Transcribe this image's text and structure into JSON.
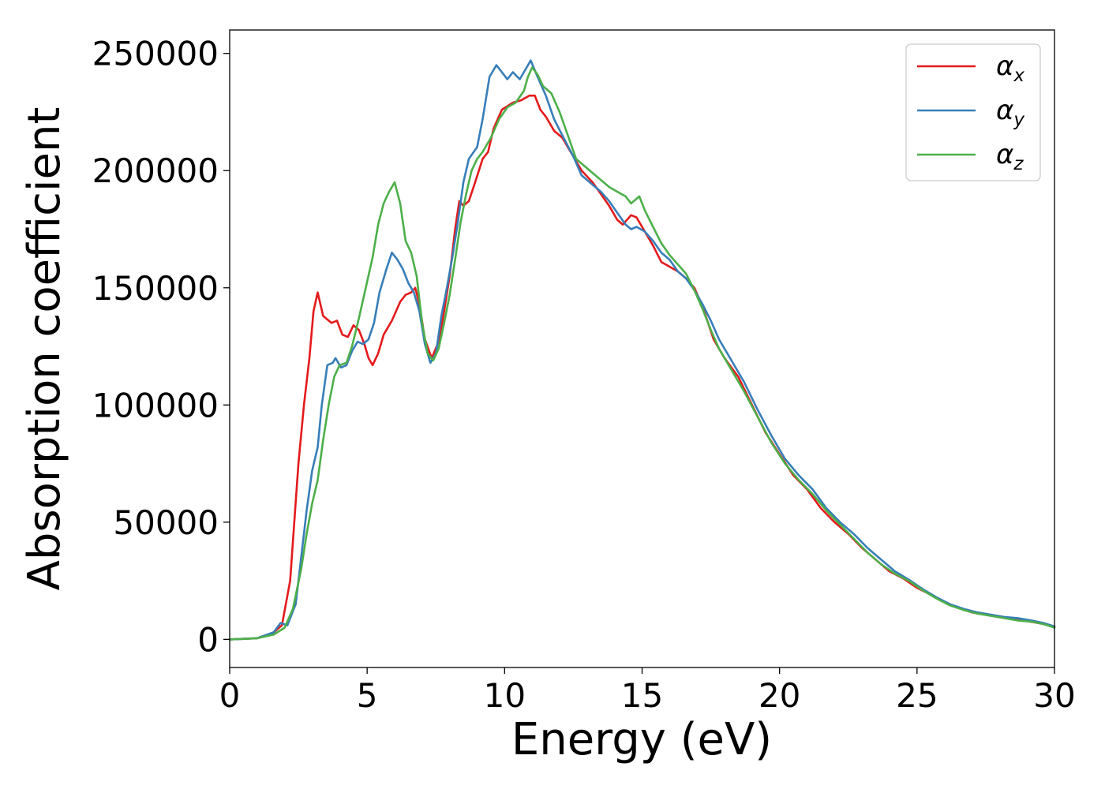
{
  "chart_data": {
    "type": "line",
    "xlabel": "Energy (eV)",
    "ylabel": "Absorption coefficient",
    "xlim": [
      0,
      30
    ],
    "ylim": [
      -12000,
      260000
    ],
    "xticks": [
      0,
      5,
      10,
      15,
      20,
      25,
      30
    ],
    "xtick_labels": [
      "0",
      "5",
      "10",
      "15",
      "20",
      "25",
      "30"
    ],
    "yticks": [
      0,
      50000,
      100000,
      150000,
      200000,
      250000
    ],
    "ytick_labels": [
      "0",
      "50000",
      "100000",
      "150000",
      "200000",
      "250000"
    ],
    "grid": false,
    "legend_position": "top-right",
    "series": [
      {
        "name": "α_x",
        "legend_base": "α",
        "legend_sub": "x",
        "color": "#e41a1c",
        "points": [
          [
            0,
            0
          ],
          [
            1,
            500
          ],
          [
            1.5,
            2000
          ],
          [
            1.9,
            6000
          ],
          [
            2.2,
            25000
          ],
          [
            2.5,
            75000
          ],
          [
            2.7,
            100000
          ],
          [
            2.9,
            120000
          ],
          [
            3.05,
            140000
          ],
          [
            3.2,
            148000
          ],
          [
            3.4,
            138000
          ],
          [
            3.7,
            135000
          ],
          [
            3.9,
            136000
          ],
          [
            4.1,
            130000
          ],
          [
            4.3,
            129000
          ],
          [
            4.5,
            134000
          ],
          [
            4.7,
            132000
          ],
          [
            4.9,
            126000
          ],
          [
            5.05,
            120000
          ],
          [
            5.2,
            117000
          ],
          [
            5.4,
            122000
          ],
          [
            5.6,
            130000
          ],
          [
            5.9,
            136000
          ],
          [
            6.2,
            144000
          ],
          [
            6.4,
            147000
          ],
          [
            6.6,
            148000
          ],
          [
            6.75,
            150000
          ],
          [
            6.9,
            143000
          ],
          [
            7.1,
            128000
          ],
          [
            7.35,
            120000
          ],
          [
            7.6,
            127000
          ],
          [
            7.8,
            140000
          ],
          [
            8.0,
            155000
          ],
          [
            8.2,
            175000
          ],
          [
            8.35,
            187000
          ],
          [
            8.5,
            185000
          ],
          [
            8.7,
            187000
          ],
          [
            8.9,
            194000
          ],
          [
            9.2,
            205000
          ],
          [
            9.4,
            208000
          ],
          [
            9.6,
            218000
          ],
          [
            9.9,
            226000
          ],
          [
            10.3,
            229000
          ],
          [
            10.6,
            230000
          ],
          [
            10.9,
            232000
          ],
          [
            11.1,
            232000
          ],
          [
            11.3,
            226000
          ],
          [
            11.5,
            223000
          ],
          [
            11.8,
            217000
          ],
          [
            12.1,
            214000
          ],
          [
            12.5,
            206000
          ],
          [
            12.8,
            200000
          ],
          [
            13.2,
            195000
          ],
          [
            13.5,
            190000
          ],
          [
            13.8,
            185000
          ],
          [
            14.1,
            179000
          ],
          [
            14.3,
            177000
          ],
          [
            14.6,
            181000
          ],
          [
            14.8,
            180000
          ],
          [
            15.1,
            174000
          ],
          [
            15.4,
            168000
          ],
          [
            15.7,
            161000
          ],
          [
            16.0,
            159000
          ],
          [
            16.3,
            157000
          ],
          [
            16.6,
            154000
          ],
          [
            16.9,
            150000
          ],
          [
            17.2,
            142000
          ],
          [
            17.6,
            128000
          ],
          [
            18.0,
            120000
          ],
          [
            18.5,
            112000
          ],
          [
            19.0,
            100000
          ],
          [
            19.5,
            88000
          ],
          [
            20.0,
            79000
          ],
          [
            20.5,
            70000
          ],
          [
            21.0,
            64000
          ],
          [
            21.5,
            56000
          ],
          [
            22.0,
            50000
          ],
          [
            22.5,
            45000
          ],
          [
            23.0,
            39000
          ],
          [
            23.5,
            34000
          ],
          [
            24.0,
            29000
          ],
          [
            24.5,
            26000
          ],
          [
            25.0,
            22000
          ],
          [
            25.5,
            19000
          ],
          [
            26.0,
            16000
          ],
          [
            26.5,
            13500
          ],
          [
            27.0,
            11500
          ],
          [
            27.5,
            10500
          ],
          [
            28.0,
            9500
          ],
          [
            28.5,
            8500
          ],
          [
            29.0,
            7800
          ],
          [
            29.5,
            6800
          ],
          [
            30.0,
            5500
          ]
        ]
      },
      {
        "name": "α_y",
        "legend_base": "α",
        "legend_sub": "y",
        "color": "#377eb8",
        "points": [
          [
            0,
            0
          ],
          [
            1,
            500
          ],
          [
            1.6,
            3000
          ],
          [
            1.85,
            7000
          ],
          [
            2.1,
            6000
          ],
          [
            2.4,
            15000
          ],
          [
            2.6,
            35000
          ],
          [
            2.8,
            55000
          ],
          [
            3.0,
            72000
          ],
          [
            3.2,
            82000
          ],
          [
            3.35,
            100000
          ],
          [
            3.55,
            117000
          ],
          [
            3.75,
            118000
          ],
          [
            3.85,
            120000
          ],
          [
            4.05,
            116000
          ],
          [
            4.25,
            117000
          ],
          [
            4.45,
            123000
          ],
          [
            4.65,
            127000
          ],
          [
            4.85,
            126000
          ],
          [
            5.05,
            128000
          ],
          [
            5.25,
            135000
          ],
          [
            5.45,
            148000
          ],
          [
            5.7,
            158000
          ],
          [
            5.9,
            165000
          ],
          [
            6.1,
            162000
          ],
          [
            6.3,
            158000
          ],
          [
            6.5,
            152000
          ],
          [
            6.7,
            148000
          ],
          [
            6.9,
            140000
          ],
          [
            7.1,
            126000
          ],
          [
            7.3,
            118000
          ],
          [
            7.5,
            122000
          ],
          [
            7.7,
            138000
          ],
          [
            7.9,
            150000
          ],
          [
            8.1,
            163000
          ],
          [
            8.3,
            178000
          ],
          [
            8.5,
            195000
          ],
          [
            8.7,
            205000
          ],
          [
            9.0,
            210000
          ],
          [
            9.2,
            222000
          ],
          [
            9.45,
            240000
          ],
          [
            9.7,
            245000
          ],
          [
            9.9,
            242000
          ],
          [
            10.1,
            239000
          ],
          [
            10.3,
            242000
          ],
          [
            10.55,
            239000
          ],
          [
            10.75,
            243000
          ],
          [
            10.95,
            247000
          ],
          [
            11.2,
            240000
          ],
          [
            11.5,
            232000
          ],
          [
            11.8,
            222000
          ],
          [
            12.1,
            215000
          ],
          [
            12.5,
            206000
          ],
          [
            12.8,
            198000
          ],
          [
            13.2,
            194000
          ],
          [
            13.5,
            191000
          ],
          [
            13.8,
            187000
          ],
          [
            14.1,
            182000
          ],
          [
            14.4,
            177000
          ],
          [
            14.6,
            175000
          ],
          [
            14.8,
            176000
          ],
          [
            15.1,
            174000
          ],
          [
            15.4,
            170000
          ],
          [
            15.7,
            165000
          ],
          [
            16.0,
            162000
          ],
          [
            16.3,
            157000
          ],
          [
            16.6,
            154000
          ],
          [
            16.9,
            149000
          ],
          [
            17.2,
            143000
          ],
          [
            17.5,
            136000
          ],
          [
            17.8,
            128000
          ],
          [
            18.2,
            120000
          ],
          [
            18.7,
            110000
          ],
          [
            19.2,
            98000
          ],
          [
            19.7,
            87000
          ],
          [
            20.2,
            77000
          ],
          [
            20.7,
            70000
          ],
          [
            21.2,
            64000
          ],
          [
            21.7,
            56000
          ],
          [
            22.2,
            50000
          ],
          [
            22.7,
            45000
          ],
          [
            23.2,
            39000
          ],
          [
            23.7,
            34000
          ],
          [
            24.2,
            29000
          ],
          [
            24.7,
            25500
          ],
          [
            25.2,
            21500
          ],
          [
            25.7,
            18000
          ],
          [
            26.2,
            15000
          ],
          [
            26.7,
            13000
          ],
          [
            27.2,
            11500
          ],
          [
            27.7,
            10500
          ],
          [
            28.2,
            9500
          ],
          [
            28.7,
            9000
          ],
          [
            29.2,
            8000
          ],
          [
            29.6,
            7000
          ],
          [
            30.0,
            5500
          ]
        ]
      },
      {
        "name": "α_z",
        "legend_base": "α",
        "legend_sub": "z",
        "color": "#4daf4a",
        "points": [
          [
            0,
            0
          ],
          [
            1,
            500
          ],
          [
            1.6,
            2000
          ],
          [
            2.0,
            5000
          ],
          [
            2.3,
            13000
          ],
          [
            2.6,
            30000
          ],
          [
            2.8,
            45000
          ],
          [
            3.0,
            58000
          ],
          [
            3.2,
            68000
          ],
          [
            3.4,
            85000
          ],
          [
            3.6,
            100000
          ],
          [
            3.8,
            112000
          ],
          [
            4.0,
            117000
          ],
          [
            4.25,
            118000
          ],
          [
            4.45,
            125000
          ],
          [
            4.7,
            137000
          ],
          [
            4.95,
            150000
          ],
          [
            5.2,
            163000
          ],
          [
            5.4,
            177000
          ],
          [
            5.6,
            186000
          ],
          [
            5.8,
            191000
          ],
          [
            6.0,
            195000
          ],
          [
            6.2,
            186000
          ],
          [
            6.4,
            170000
          ],
          [
            6.6,
            165000
          ],
          [
            6.8,
            155000
          ],
          [
            7.0,
            135000
          ],
          [
            7.2,
            122000
          ],
          [
            7.4,
            119000
          ],
          [
            7.6,
            124000
          ],
          [
            7.8,
            135000
          ],
          [
            8.0,
            147000
          ],
          [
            8.2,
            162000
          ],
          [
            8.4,
            178000
          ],
          [
            8.6,
            190000
          ],
          [
            8.8,
            200000
          ],
          [
            9.0,
            205000
          ],
          [
            9.2,
            208000
          ],
          [
            9.5,
            214000
          ],
          [
            9.8,
            222000
          ],
          [
            10.1,
            227000
          ],
          [
            10.4,
            229000
          ],
          [
            10.7,
            234000
          ],
          [
            10.85,
            240000
          ],
          [
            11.0,
            244000
          ],
          [
            11.2,
            241000
          ],
          [
            11.4,
            236000
          ],
          [
            11.7,
            233000
          ],
          [
            12.0,
            225000
          ],
          [
            12.3,
            215000
          ],
          [
            12.6,
            205000
          ],
          [
            12.9,
            202000
          ],
          [
            13.2,
            199000
          ],
          [
            13.5,
            196000
          ],
          [
            13.8,
            193000
          ],
          [
            14.1,
            191000
          ],
          [
            14.4,
            189000
          ],
          [
            14.6,
            186000
          ],
          [
            14.9,
            189000
          ],
          [
            15.1,
            183000
          ],
          [
            15.4,
            176000
          ],
          [
            15.7,
            169000
          ],
          [
            16.0,
            164000
          ],
          [
            16.3,
            160000
          ],
          [
            16.6,
            156000
          ],
          [
            16.9,
            149000
          ],
          [
            17.2,
            141000
          ],
          [
            17.5,
            132000
          ],
          [
            17.8,
            124000
          ],
          [
            18.2,
            116000
          ],
          [
            18.7,
            106000
          ],
          [
            19.2,
            95000
          ],
          [
            19.7,
            84000
          ],
          [
            20.2,
            75000
          ],
          [
            20.7,
            68000
          ],
          [
            21.2,
            62000
          ],
          [
            21.7,
            55000
          ],
          [
            22.2,
            49000
          ],
          [
            22.7,
            43000
          ],
          [
            23.2,
            37000
          ],
          [
            23.7,
            32000
          ],
          [
            24.2,
            28000
          ],
          [
            24.7,
            25000
          ],
          [
            25.2,
            21000
          ],
          [
            25.7,
            17500
          ],
          [
            26.2,
            14500
          ],
          [
            26.7,
            12500
          ],
          [
            27.2,
            11000
          ],
          [
            27.7,
            10000
          ],
          [
            28.2,
            9000
          ],
          [
            28.7,
            8000
          ],
          [
            29.2,
            7500
          ],
          [
            29.6,
            6500
          ],
          [
            30.0,
            5000
          ]
        ]
      }
    ]
  }
}
